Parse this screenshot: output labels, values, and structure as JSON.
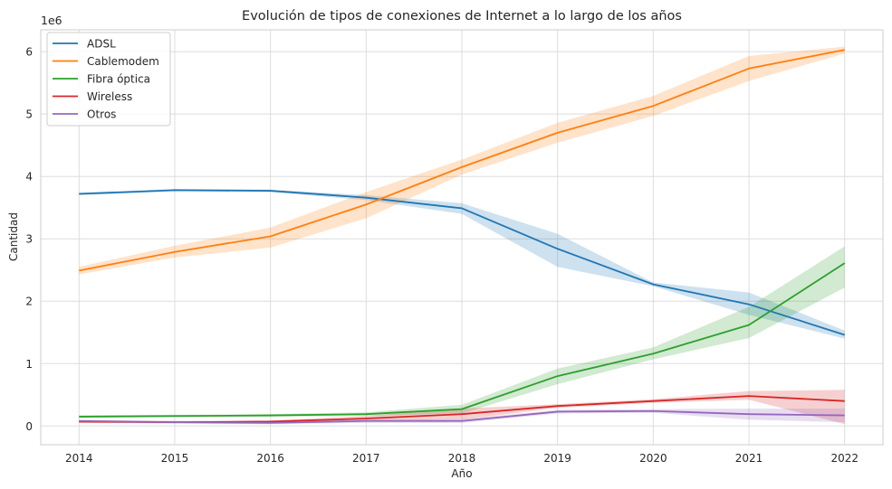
{
  "chart_data": {
    "type": "line",
    "title": "Evolución de tipos de conexiones de Internet a lo largo de los años",
    "xlabel": "Año",
    "ylabel": "Cantidad",
    "y_offset_label": "1e6",
    "x": [
      2014,
      2015,
      2016,
      2017,
      2018,
      2019,
      2020,
      2021,
      2022
    ],
    "xlim": [
      2013.6,
      2022.4
    ],
    "ylim": [
      -0.3,
      6.35
    ],
    "y_ticks": [
      0,
      1,
      2,
      3,
      4,
      5,
      6
    ],
    "grid": true,
    "legend_position": "top-left",
    "series": [
      {
        "name": "ADSL",
        "color": "#1f77b4",
        "values": [
          3.72,
          3.78,
          3.77,
          3.66,
          3.49,
          2.84,
          2.27,
          1.95,
          1.46
        ],
        "lower": [
          3.7,
          3.76,
          3.75,
          3.62,
          3.4,
          2.55,
          2.24,
          1.78,
          1.4
        ],
        "upper": [
          3.74,
          3.8,
          3.79,
          3.7,
          3.57,
          3.08,
          2.3,
          2.14,
          1.53
        ]
      },
      {
        "name": "Cablemodem",
        "color": "#ff7f0e",
        "values": [
          2.49,
          2.79,
          3.04,
          3.55,
          4.15,
          4.7,
          5.13,
          5.73,
          6.03
        ],
        "lower": [
          2.43,
          2.7,
          2.86,
          3.33,
          4.03,
          4.54,
          4.97,
          5.53,
          5.97
        ],
        "upper": [
          2.55,
          2.89,
          3.18,
          3.75,
          4.27,
          4.86,
          5.29,
          5.93,
          6.08
        ]
      },
      {
        "name": "Fibra óptica",
        "color": "#2ca02c",
        "values": [
          0.15,
          0.16,
          0.17,
          0.19,
          0.27,
          0.8,
          1.16,
          1.62,
          2.61
        ],
        "lower": [
          0.13,
          0.14,
          0.15,
          0.16,
          0.2,
          0.67,
          1.07,
          1.41,
          2.22
        ],
        "upper": [
          0.17,
          0.18,
          0.19,
          0.22,
          0.34,
          0.92,
          1.26,
          1.91,
          2.88
        ]
      },
      {
        "name": "Wireless",
        "color": "#d62728",
        "values": [
          0.07,
          0.06,
          0.07,
          0.12,
          0.19,
          0.32,
          0.4,
          0.48,
          0.4
        ],
        "lower": [
          0.05,
          0.04,
          0.05,
          0.08,
          0.1,
          0.29,
          0.37,
          0.42,
          0.03
        ],
        "upper": [
          0.09,
          0.08,
          0.09,
          0.16,
          0.28,
          0.35,
          0.43,
          0.56,
          0.58
        ]
      },
      {
        "name": "Otros",
        "color": "#9467bd",
        "values": [
          0.08,
          0.06,
          0.05,
          0.08,
          0.08,
          0.23,
          0.24,
          0.19,
          0.17
        ],
        "lower": [
          0.06,
          0.04,
          0.03,
          0.05,
          0.05,
          0.2,
          0.21,
          0.1,
          0.06
        ],
        "upper": [
          0.1,
          0.08,
          0.07,
          0.11,
          0.11,
          0.26,
          0.27,
          0.28,
          0.28
        ]
      }
    ]
  }
}
